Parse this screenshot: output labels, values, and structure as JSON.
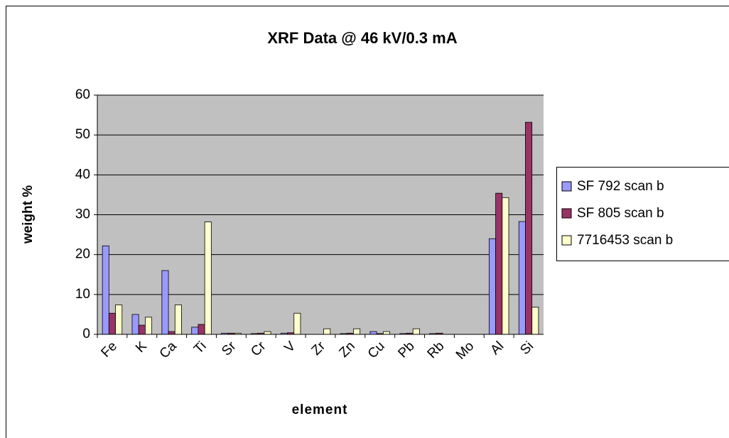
{
  "chart_data": {
    "type": "bar",
    "title": "XRF Data @ 46 kV/0.3 mA",
    "x_label": "element",
    "y_label": "weight %",
    "categories": [
      "Fe",
      "K",
      "Ca",
      "Ti",
      "Sr",
      "Cr",
      "V",
      "Zr",
      "Zn",
      "Cu",
      "Pb",
      "Rb",
      "Mo",
      "Al",
      "Si"
    ],
    "series": [
      {
        "name": "SF 792 scan b",
        "color": "#9999ff",
        "values": [
          22.2,
          5,
          16,
          1.8,
          0.3,
          0.2,
          0.3,
          0,
          0.2,
          0.7,
          0.2,
          0.2,
          0,
          24,
          28.3
        ]
      },
      {
        "name": "SF 805 scan b",
        "color": "#993366",
        "values": [
          5.3,
          2.3,
          0.7,
          2.5,
          0.3,
          0.3,
          0.4,
          0,
          0.3,
          0.2,
          0.3,
          0.3,
          0,
          35.4,
          53.2
        ]
      },
      {
        "name": "7716453 scan b",
        "color": "#ffffcc",
        "values": [
          7.4,
          4.3,
          7.4,
          28.2,
          0.3,
          0.7,
          5.3,
          1.4,
          1.4,
          0.7,
          1.4,
          0,
          0,
          34.3,
          6.8
        ]
      }
    ],
    "ylim": [
      0,
      60
    ],
    "yticks": [
      0,
      10,
      20,
      30,
      40,
      50,
      60
    ],
    "grid": true,
    "plot_background": "#c0c0c0",
    "legend": "right"
  }
}
